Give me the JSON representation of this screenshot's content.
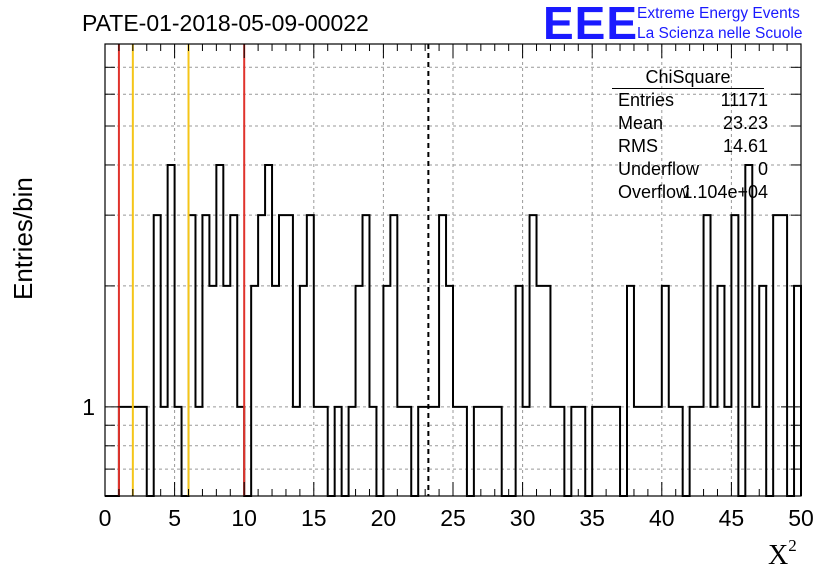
{
  "title": "PATE-01-2018-05-09-00022",
  "logo": {
    "mark": "EEE",
    "line1": "Extreme Energy Events",
    "line2": "La Scienza nelle Scuole",
    "color": "#1a1aff"
  },
  "stats": {
    "title": "ChiSquare",
    "rows": [
      {
        "key": "Entries",
        "value": "11171"
      },
      {
        "key": "Mean",
        "value": "23.23"
      },
      {
        "key": "RMS",
        "value": "14.61"
      },
      {
        "key": "Underflow",
        "value": "0"
      },
      {
        "key": "Overflow",
        "value": "1.104e+04"
      }
    ]
  },
  "chart_data": {
    "type": "histogram",
    "xlabel": "X²",
    "ylabel": "Entries/bin",
    "xlim": [
      0,
      50
    ],
    "ylog": true,
    "ylim": [
      0.6,
      8
    ],
    "x_ticks": [
      0,
      5,
      10,
      15,
      20,
      25,
      30,
      35,
      40,
      45,
      50
    ],
    "y_tick_labels": [
      "1"
    ],
    "bin_width": 0.5,
    "bin_values": [
      0,
      0,
      1,
      1,
      1,
      1,
      0,
      3,
      1,
      4,
      1,
      0,
      3,
      1,
      3,
      2,
      4,
      2,
      3,
      1,
      0,
      2,
      3,
      4,
      2,
      3,
      3,
      1,
      2,
      3,
      1,
      1,
      0,
      1,
      0,
      1,
      2,
      3,
      1,
      0,
      2,
      3,
      1,
      1,
      0,
      1,
      1,
      1,
      3,
      2,
      1,
      1,
      0,
      1,
      1,
      1,
      1,
      0,
      0,
      2,
      1,
      3,
      2,
      2,
      1,
      1,
      0,
      1,
      1,
      0,
      1,
      1,
      1,
      1,
      0,
      2,
      1,
      1,
      1,
      1,
      2,
      1,
      1,
      0,
      1,
      1,
      3,
      1,
      2,
      1,
      3,
      0,
      4,
      1,
      2,
      0,
      3,
      3,
      0,
      2
    ],
    "grid": true,
    "vertical_lines": [
      {
        "x": 1,
        "color": "#e0332c",
        "style": "solid"
      },
      {
        "x": 2,
        "color": "#f5c518",
        "style": "solid"
      },
      {
        "x": 6,
        "color": "#f5c518",
        "style": "solid"
      },
      {
        "x": 10,
        "color": "#e0332c",
        "style": "solid"
      },
      {
        "x": 23.23,
        "color": "#000000",
        "style": "dashed"
      }
    ]
  }
}
